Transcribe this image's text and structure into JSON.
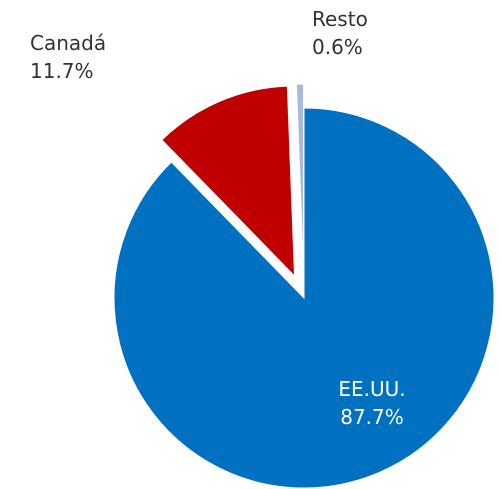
{
  "chart_data": {
    "type": "pie",
    "categories": [
      "EE.UU.",
      "Canadá",
      "Resto"
    ],
    "values": [
      87.7,
      11.7,
      0.6
    ],
    "value_labels": [
      "87.7%",
      "11.7%",
      "0.6%"
    ],
    "colors": [
      "#0070c0",
      "#c00000",
      "#a9b8dd"
    ],
    "label_colors": [
      "#ffffff",
      "#333333",
      "#333333"
    ],
    "exploded": true
  }
}
